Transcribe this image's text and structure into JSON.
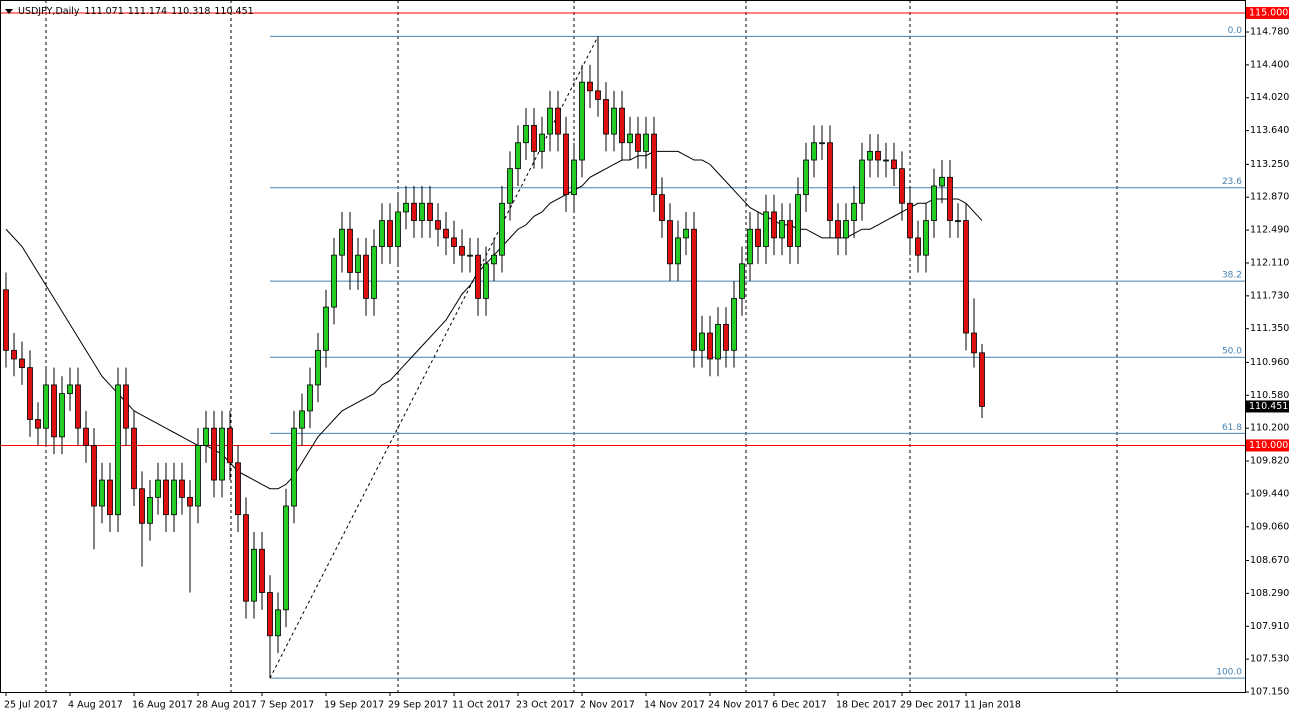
{
  "chart_data": {
    "type": "candlestick",
    "title": "USDJPY,Daily",
    "categories": [
      "25 Jul 2017",
      null,
      null,
      null,
      null,
      null,
      null,
      null,
      "4 Aug 2017",
      null,
      null,
      null,
      null,
      null,
      null,
      null,
      "16 Aug 2017",
      null,
      null,
      null,
      null,
      null,
      null,
      null,
      "28 Aug 2017",
      null,
      null,
      null,
      null,
      null,
      null,
      null,
      "7 Sep 2017",
      null,
      null,
      null,
      null,
      null,
      null,
      null,
      "19 Sep 2017",
      null,
      null,
      null,
      null,
      null,
      null,
      null,
      "29 Sep 2017",
      null,
      null,
      null,
      null,
      null,
      null,
      null,
      "11 Oct 2017",
      null,
      null,
      null,
      null,
      null,
      null,
      null,
      "23 Oct 2017",
      null,
      null,
      null,
      null,
      null,
      null,
      null,
      "2 Nov 2017",
      null,
      null,
      null,
      null,
      null,
      null,
      null,
      "14 Nov 2017",
      null,
      null,
      null,
      null,
      null,
      null,
      null,
      "24 Nov 2017",
      null,
      null,
      null,
      null,
      null,
      null,
      null,
      "6 Dec 2017",
      null,
      null,
      null,
      null,
      null,
      null,
      null,
      "18 Dec 2017",
      null,
      null,
      null,
      null,
      null,
      null,
      null,
      "29 Dec 2017",
      null,
      null,
      null,
      null,
      null,
      null,
      null,
      "11 Jan 2018",
      null,
      null
    ],
    "open": [
      111.8,
      111.1,
      111.0,
      110.9,
      110.3,
      110.2,
      110.7,
      110.1,
      110.6,
      110.7,
      110.2,
      110.0,
      109.3,
      109.6,
      109.2,
      110.7,
      110.2,
      109.5,
      109.1,
      109.4,
      109.6,
      109.2,
      109.6,
      109.4,
      109.3,
      110.0,
      110.2,
      109.6,
      110.2,
      109.8,
      109.2,
      108.2,
      108.8,
      108.3,
      107.8,
      108.1,
      109.3,
      110.2,
      110.4,
      110.7,
      111.1,
      111.6,
      112.2,
      112.5,
      112.0,
      112.2,
      111.7,
      112.3,
      112.6,
      112.3,
      112.7,
      112.8,
      112.6,
      112.8,
      112.6,
      112.5,
      112.4,
      112.3,
      112.2,
      112.2,
      111.7,
      112.1,
      112.2,
      112.8,
      113.2,
      113.5,
      113.7,
      113.4,
      113.6,
      113.9,
      113.6,
      112.9,
      113.3,
      114.2,
      114.1,
      114.0,
      113.6,
      113.9,
      113.5,
      113.6,
      113.4,
      113.6,
      112.9,
      112.6,
      112.1,
      112.4,
      112.5,
      111.1,
      111.3,
      111.0,
      111.4,
      111.1,
      111.7,
      112.1,
      112.5,
      112.3,
      112.7,
      112.4,
      112.6,
      112.3,
      112.9,
      113.3,
      113.5,
      113.5,
      112.6,
      112.4,
      112.6,
      112.8,
      113.3,
      113.4,
      113.3,
      113.3,
      113.2,
      112.8,
      112.4,
      112.2,
      112.6,
      113.0,
      113.1,
      112.6,
      112.6,
      111.3,
      111.071
    ],
    "high": [
      112.0,
      111.3,
      111.2,
      111.1,
      110.5,
      110.9,
      110.9,
      110.8,
      110.9,
      110.9,
      110.4,
      110.2,
      109.8,
      109.8,
      110.9,
      110.9,
      110.4,
      109.7,
      109.6,
      109.8,
      109.8,
      109.8,
      109.8,
      109.6,
      110.2,
      110.4,
      110.4,
      110.4,
      110.4,
      110.0,
      109.4,
      109.0,
      109.0,
      108.5,
      108.3,
      109.5,
      110.4,
      110.6,
      110.9,
      111.3,
      111.8,
      112.4,
      112.7,
      112.7,
      112.4,
      112.4,
      112.5,
      112.8,
      112.8,
      112.9,
      113.0,
      113.0,
      113.0,
      113.0,
      112.8,
      112.7,
      112.6,
      112.5,
      112.4,
      112.4,
      112.3,
      112.4,
      113.0,
      113.4,
      113.7,
      113.9,
      113.9,
      113.8,
      114.1,
      114.1,
      113.8,
      113.5,
      114.4,
      114.4,
      114.73,
      114.2,
      114.1,
      114.1,
      113.8,
      113.8,
      113.8,
      113.8,
      113.1,
      112.8,
      112.6,
      112.7,
      112.7,
      111.5,
      111.5,
      111.6,
      111.6,
      111.9,
      112.3,
      112.7,
      112.7,
      112.9,
      112.9,
      112.8,
      112.8,
      113.1,
      113.5,
      113.7,
      113.7,
      113.7,
      112.8,
      112.8,
      113.0,
      113.5,
      113.6,
      113.6,
      113.5,
      113.5,
      113.4,
      113.0,
      112.6,
      112.8,
      113.2,
      113.3,
      113.3,
      112.8,
      112.8,
      111.7,
      111.174
    ],
    "low": [
      110.9,
      110.8,
      110.7,
      110.1,
      110.0,
      110.0,
      109.9,
      109.9,
      110.4,
      110.0,
      109.8,
      108.8,
      109.1,
      109.0,
      109.0,
      110.0,
      109.3,
      108.6,
      108.9,
      109.2,
      109.0,
      109.0,
      109.2,
      108.3,
      109.1,
      109.8,
      109.4,
      109.4,
      109.6,
      109.0,
      108.0,
      108.0,
      108.1,
      107.31,
      107.6,
      107.9,
      109.1,
      110.0,
      110.2,
      110.5,
      110.9,
      111.4,
      112.0,
      111.8,
      111.8,
      111.5,
      111.5,
      112.1,
      112.1,
      112.1,
      112.5,
      112.4,
      112.4,
      112.4,
      112.3,
      112.2,
      112.1,
      112.0,
      112.0,
      111.5,
      111.5,
      111.9,
      112.0,
      112.6,
      113.0,
      113.3,
      113.2,
      113.2,
      113.4,
      113.4,
      112.7,
      112.7,
      113.1,
      113.9,
      113.8,
      113.4,
      113.4,
      113.3,
      113.3,
      113.2,
      113.2,
      112.7,
      112.4,
      111.9,
      111.9,
      112.2,
      110.9,
      110.9,
      110.8,
      110.8,
      110.9,
      110.9,
      111.5,
      111.9,
      112.1,
      112.1,
      112.2,
      112.2,
      112.1,
      112.1,
      112.7,
      113.1,
      113.3,
      112.4,
      112.2,
      112.2,
      112.4,
      112.6,
      113.1,
      113.1,
      113.1,
      113.0,
      112.6,
      112.2,
      112.0,
      112.0,
      112.4,
      112.8,
      112.4,
      112.4,
      111.1,
      110.9,
      110.318
    ],
    "close": [
      111.1,
      111.0,
      110.9,
      110.3,
      110.2,
      110.7,
      110.1,
      110.6,
      110.7,
      110.2,
      110.0,
      109.3,
      109.6,
      109.2,
      110.7,
      110.2,
      109.5,
      109.1,
      109.4,
      109.6,
      109.2,
      109.6,
      109.4,
      109.3,
      110.0,
      110.2,
      109.6,
      110.2,
      109.8,
      109.2,
      108.2,
      108.8,
      108.3,
      107.8,
      108.1,
      109.3,
      110.2,
      110.4,
      110.7,
      111.1,
      111.6,
      112.2,
      112.5,
      112.0,
      112.2,
      111.7,
      112.3,
      112.6,
      112.3,
      112.7,
      112.8,
      112.6,
      112.8,
      112.6,
      112.5,
      112.4,
      112.3,
      112.2,
      112.2,
      111.7,
      112.1,
      112.2,
      112.8,
      113.2,
      113.5,
      113.7,
      113.4,
      113.6,
      113.9,
      113.6,
      112.9,
      113.3,
      114.2,
      114.1,
      114.0,
      113.6,
      113.9,
      113.5,
      113.6,
      113.4,
      113.6,
      112.9,
      112.6,
      112.1,
      112.4,
      112.5,
      111.1,
      111.3,
      111.0,
      111.4,
      111.1,
      111.7,
      112.1,
      112.5,
      112.3,
      112.7,
      112.4,
      112.6,
      112.3,
      112.9,
      113.3,
      113.5,
      113.5,
      112.6,
      112.4,
      112.6,
      112.8,
      113.3,
      113.4,
      113.3,
      113.3,
      113.2,
      112.8,
      112.4,
      112.2,
      112.6,
      113.0,
      113.1,
      112.6,
      112.6,
      111.3,
      111.071,
      110.451
    ],
    "up_color": "#22cc22",
    "down_color": "#dd1111",
    "ma": {
      "color": "#000000",
      "values": [
        112.5,
        112.4,
        112.3,
        112.15,
        112.0,
        111.85,
        111.7,
        111.55,
        111.4,
        111.25,
        111.1,
        110.95,
        110.8,
        110.7,
        110.6,
        110.5,
        110.4,
        110.35,
        110.3,
        110.25,
        110.2,
        110.15,
        110.1,
        110.05,
        110.0,
        110.0,
        109.95,
        109.9,
        109.8,
        109.7,
        109.65,
        109.6,
        109.55,
        109.5,
        109.5,
        109.55,
        109.65,
        109.8,
        109.95,
        110.1,
        110.2,
        110.3,
        110.4,
        110.45,
        110.5,
        110.55,
        110.6,
        110.7,
        110.75,
        110.85,
        110.95,
        111.05,
        111.15,
        111.25,
        111.35,
        111.45,
        111.6,
        111.75,
        111.85,
        112.0,
        112.1,
        112.2,
        112.3,
        112.4,
        112.5,
        112.55,
        112.65,
        112.7,
        112.8,
        112.85,
        112.9,
        112.95,
        113.0,
        113.1,
        113.15,
        113.2,
        113.25,
        113.3,
        113.3,
        113.35,
        113.35,
        113.4,
        113.4,
        113.4,
        113.4,
        113.35,
        113.3,
        113.3,
        113.25,
        113.15,
        113.05,
        112.95,
        112.85,
        112.75,
        112.7,
        112.65,
        112.6,
        112.55,
        112.55,
        112.5,
        112.5,
        112.45,
        112.4,
        112.4,
        112.4,
        112.4,
        112.45,
        112.5,
        112.5,
        112.55,
        112.6,
        112.65,
        112.7,
        112.75,
        112.8,
        112.8,
        112.85,
        112.85,
        112.85,
        112.85,
        112.8,
        112.7,
        112.6
      ]
    },
    "fib_levels": [
      {
        "value": 114.73,
        "label": "0.0"
      },
      {
        "value": 112.98,
        "label": "23.6"
      },
      {
        "value": 111.9,
        "label": "38.2"
      },
      {
        "value": 111.02,
        "label": "50.0"
      },
      {
        "value": 110.14,
        "label": "61.8"
      },
      {
        "value": 107.31,
        "label": "100.0"
      }
    ],
    "fib_color": "#4682b4",
    "hlines": [
      {
        "value": 115,
        "label": "115.000",
        "color": "#ff0000"
      },
      {
        "value": 110,
        "label": "110.000",
        "color": "#ff0000"
      }
    ],
    "ylim": [
      107.15,
      115.15
    ],
    "yticks": [
      {
        "value": 114.78,
        "label": "114.780"
      },
      {
        "value": 114.4,
        "label": "114.400"
      },
      {
        "value": 114.02,
        "label": "114.020"
      },
      {
        "value": 113.64,
        "label": "113.640"
      },
      {
        "value": 113.25,
        "label": "113.250"
      },
      {
        "value": 112.87,
        "label": "112.870"
      },
      {
        "value": 112.49,
        "label": "112.490"
      },
      {
        "value": 112.11,
        "label": "112.110"
      },
      {
        "value": 111.73,
        "label": "111.730"
      },
      {
        "value": 111.35,
        "label": "111.350"
      },
      {
        "value": 110.96,
        "label": "110.960"
      },
      {
        "value": 110.58,
        "label": "110.580"
      },
      {
        "value": 110.2,
        "label": "110.200"
      },
      {
        "value": 109.82,
        "label": "109.820"
      },
      {
        "value": 109.44,
        "label": "109.440"
      },
      {
        "value": 109.06,
        "label": "109.060"
      },
      {
        "value": 108.67,
        "label": "108.670"
      },
      {
        "value": 108.29,
        "label": "108.290"
      },
      {
        "value": 107.91,
        "label": "107.910"
      },
      {
        "value": 107.53,
        "label": "107.530"
      },
      {
        "value": 107.15,
        "label": "107.150"
      }
    ]
  }
}
